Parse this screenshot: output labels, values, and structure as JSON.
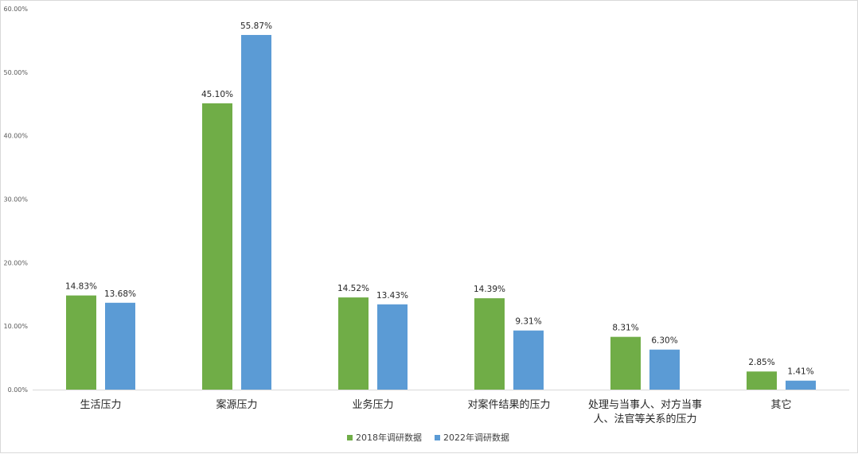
{
  "chart_data": {
    "type": "bar",
    "title": "",
    "xlabel": "",
    "ylabel": "",
    "ylim": [
      0,
      60
    ],
    "yticks": [
      "0.00%",
      "10.00%",
      "20.00%",
      "30.00%",
      "40.00%",
      "50.00%",
      "60.00%"
    ],
    "grid": false,
    "legend_position": "bottom",
    "categories": [
      [
        "生活压力"
      ],
      [
        "案源压力"
      ],
      [
        "业务压力"
      ],
      [
        "对案件结果的压力"
      ],
      [
        "处理与当事人、对方当事",
        "人、法官等关系的压力"
      ],
      [
        "其它"
      ]
    ],
    "series": [
      {
        "name": "2018年调研数据",
        "color": "#70ad47",
        "values": [
          14.83,
          45.1,
          14.52,
          14.39,
          8.31,
          2.85
        ],
        "labels": [
          "14.83%",
          "45.10%",
          "14.52%",
          "14.39%",
          "8.31%",
          "2.85%"
        ]
      },
      {
        "name": "2022年调研数据",
        "color": "#5b9bd5",
        "values": [
          13.68,
          55.87,
          13.43,
          9.31,
          6.3,
          1.41
        ],
        "labels": [
          "13.68%",
          "55.87%",
          "13.43%",
          "9.31%",
          "6.30%",
          "1.41%"
        ]
      }
    ]
  }
}
